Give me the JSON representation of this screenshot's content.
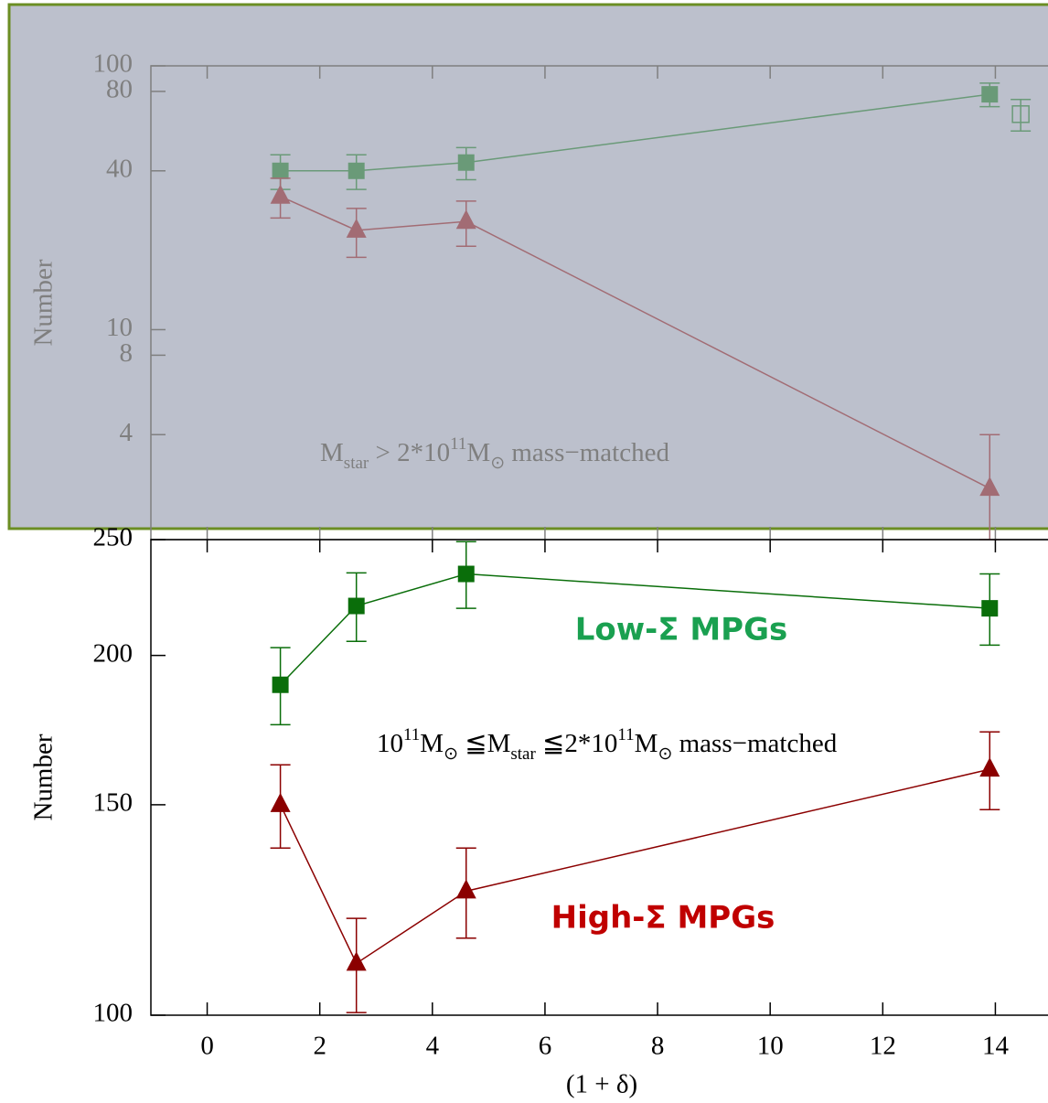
{
  "chart_data": [
    {
      "type": "line",
      "ylabel": "Number",
      "log_y": true,
      "xlim": [
        -1,
        15
      ],
      "ylim": [
        1.6,
        100
      ],
      "yticks": [
        100,
        80,
        40,
        10,
        8,
        4
      ],
      "axis_color": "#7f7f7f",
      "background": "#bcc0cc",
      "frame_color": "#6b8e23",
      "annotation": [
        {
          "text": "M",
          "style": "normal"
        },
        {
          "text": "star",
          "style": "sub"
        },
        {
          "text": " > 2*10",
          "style": "normal"
        },
        {
          "text": "11",
          "style": "super"
        },
        {
          "text": "M",
          "style": "normal"
        },
        {
          "text": "⊙",
          "style": "sub"
        },
        {
          "text": " mass−matched",
          "style": "normal"
        }
      ],
      "series": [
        {
          "color": "#6a9a78",
          "marker": "square",
          "line": true,
          "x": [
            1.3,
            2.65,
            4.6,
            13.9
          ],
          "values": [
            40,
            40,
            43,
            78
          ],
          "errors": [
            6,
            6,
            6,
            8
          ]
        },
        {
          "color": "#a26c74",
          "marker": "triangle",
          "line": true,
          "x": [
            1.3,
            2.65,
            4.6,
            13.9
          ],
          "values": [
            32,
            23.8,
            25.7,
            2.5
          ],
          "errors": [
            5.5,
            5,
            5,
            1.5
          ]
        },
        {
          "color": "#6a9a78",
          "marker": "square-open",
          "line": false,
          "x": [
            14.45
          ],
          "values": [
            65.6
          ],
          "errors": [
            9
          ]
        }
      ]
    },
    {
      "type": "line",
      "xlabel": "(1 + δ)",
      "ylabel": "Number",
      "log_y": true,
      "xlim": [
        -1,
        15
      ],
      "ylim": [
        100,
        250
      ],
      "xticks": [
        0,
        2,
        4,
        6,
        8,
        10,
        12,
        14
      ],
      "yticks": [
        250,
        200,
        150,
        100
      ],
      "axis_color": "#000000",
      "annotation": [
        {
          "text": "10",
          "style": "normal"
        },
        {
          "text": "11",
          "style": "super"
        },
        {
          "text": "M",
          "style": "normal"
        },
        {
          "text": "⊙",
          "style": "sub"
        },
        {
          "text": " ≦M",
          "style": "normal"
        },
        {
          "text": "star",
          "style": "sub"
        },
        {
          "text": " ≦2*10",
          "style": "normal"
        },
        {
          "text": "11",
          "style": "super"
        },
        {
          "text": "M",
          "style": "normal"
        },
        {
          "text": "⊙",
          "style": "sub"
        },
        {
          "text": " mass−matched",
          "style": "normal"
        }
      ],
      "series": [
        {
          "name": "Low-Σ MPGs",
          "color": "#0a6e0a",
          "label_color": "#1aa050",
          "marker": "square",
          "line": true,
          "x": [
            1.3,
            2.65,
            4.6,
            13.9
          ],
          "values": [
            189,
            220,
            234,
            219
          ],
          "errors": [
            14,
            14.5,
            15,
            15
          ]
        },
        {
          "name": "High-Σ MPGs",
          "color": "#8b0000",
          "label_color": "#c00000",
          "marker": "triangle",
          "line": true,
          "x": [
            1.3,
            2.65,
            4.6,
            13.9
          ],
          "values": [
            150,
            110.5,
            127,
            160.6
          ],
          "errors": [
            12,
            10,
            11,
            12
          ]
        }
      ]
    }
  ]
}
